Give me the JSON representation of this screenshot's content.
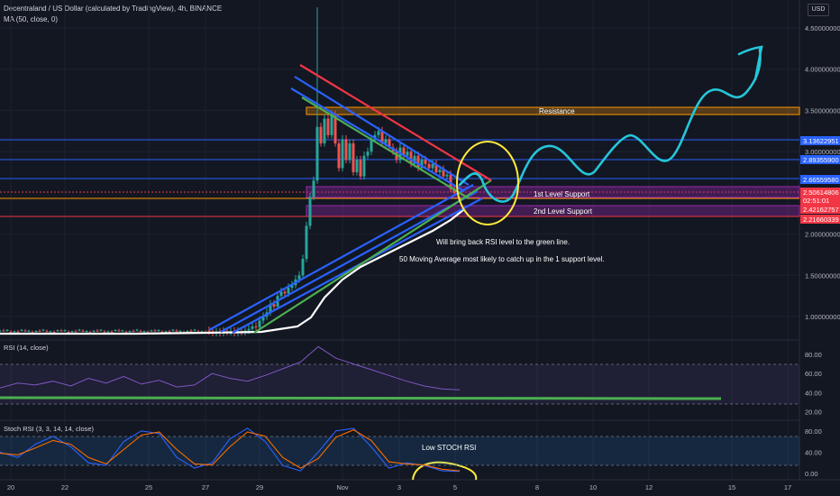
{
  "header": {
    "title": "Decentraland / US Dollar (calculated by TradingView), 4h, BINANCE",
    "indicator": "MA (50, close, 0)",
    "currency": "USD"
  },
  "panes": {
    "rsi_label": "RSI (14, close)",
    "stoch_label": "Stoch RSI (3, 3, 14, 14, close)"
  },
  "annotations": {
    "resistance": "Resistance",
    "support1": "1st Level Support",
    "support2": "2nd Level Support",
    "note1": "Will bring back RSI level to the green line.",
    "note2": "50 Moving Average most likely to catch up in the 1 support level.",
    "stoch_note": "Low STOCH RSI"
  },
  "colors": {
    "background": "#131722",
    "up": "#26a69a",
    "down": "#ef5350",
    "ma": "#ffffff",
    "projection": "#26c6da",
    "resistance_band": "#ff9800",
    "support_band": "#9c27b0",
    "channel_blue": "#2962ff",
    "channel_red": "#f23645",
    "channel_green": "#4caf50",
    "highlight": "#ffeb3b"
  },
  "chart_data": [
    {
      "type": "line",
      "title": "Decentraland / US Dollar (calculated by TradingView), 4h, BINANCE",
      "y_ticks": [
        "4.50000000",
        "4.00000000",
        "3.50000000",
        "3.00000000",
        "2.00000000",
        "1.50000000",
        "1.00000000"
      ],
      "x_ticks": [
        "20",
        "22",
        "25",
        "27",
        "29",
        "Nov",
        "3",
        "5",
        "8",
        "10",
        "12",
        "15",
        "17"
      ],
      "ylim": [
        0.78,
        4.7
      ],
      "series": [
        {
          "name": "MA (50, close, 0)",
          "x": [
            "20",
            "22",
            "25",
            "27",
            "29",
            "Nov",
            "3",
            "5"
          ],
          "values": [
            0.8,
            0.8,
            0.8,
            0.81,
            0.86,
            1.85,
            2.1,
            2.35
          ]
        }
      ],
      "price_tags": [
        {
          "label": "3.13622951",
          "color": "#2962ff"
        },
        {
          "label": "2.89355900",
          "color": "#2962ff"
        },
        {
          "label": "2.66559580",
          "color": "#2962ff"
        },
        {
          "label": "2.50614806",
          "color": "#f23645"
        },
        {
          "label": "02:51:01",
          "color": "#f23645"
        },
        {
          "label": "2.42162757",
          "color": "#f23645"
        },
        {
          "label": "2.21660339",
          "color": "#f23645"
        }
      ]
    },
    {
      "type": "line",
      "title": "RSI (14, close)",
      "y_ticks": [
        "80.00",
        "60.00",
        "40.00",
        "20.00"
      ],
      "ylim": [
        15,
        95
      ],
      "series": [
        {
          "name": "RSI (14, close)",
          "values": [
            45,
            50,
            48,
            52,
            47,
            55,
            50,
            57,
            49,
            53,
            46,
            48,
            60,
            55,
            52,
            58,
            65,
            72,
            88,
            76,
            70,
            64,
            58,
            52,
            47,
            44,
            43
          ]
        }
      ]
    },
    {
      "type": "line",
      "title": "Stoch RSI (3, 3, 14, 14, close)",
      "y_ticks": [
        "80.00",
        "40.00",
        "0.00"
      ],
      "ylim": [
        -5,
        100
      ],
      "series": [
        {
          "name": "K",
          "values": [
            40,
            30,
            55,
            70,
            50,
            20,
            15,
            60,
            80,
            75,
            30,
            10,
            20,
            65,
            85,
            60,
            15,
            5,
            40,
            80,
            85,
            50,
            10,
            20,
            15,
            5,
            4
          ]
        },
        {
          "name": "D",
          "values": [
            38,
            35,
            48,
            62,
            55,
            30,
            18,
            45,
            72,
            78,
            45,
            18,
            16,
            50,
            78,
            70,
            30,
            10,
            28,
            68,
            82,
            62,
            22,
            18,
            16,
            8,
            5
          ]
        }
      ]
    }
  ]
}
